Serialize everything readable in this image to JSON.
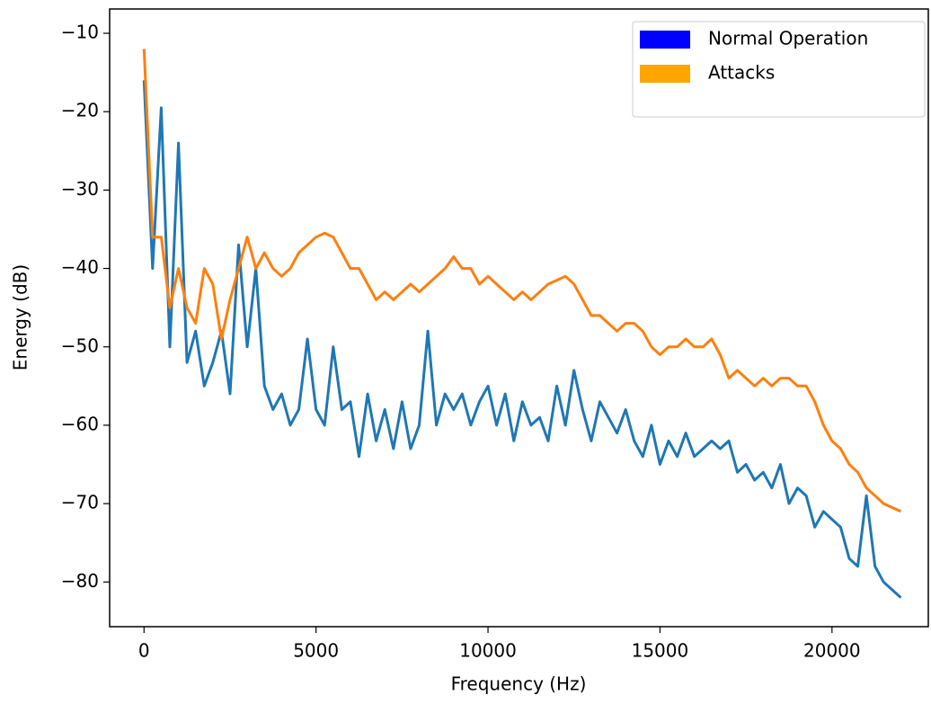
{
  "chart_data": {
    "type": "line",
    "xlabel": "Frequency (Hz)",
    "ylabel": "Energy (dB)",
    "xlim": [
      -1000,
      22800
    ],
    "ylim": [
      -85.7,
      -6.9
    ],
    "xticks": [
      0,
      5000,
      10000,
      15000,
      20000
    ],
    "yticks": [
      {
        "value": -10,
        "label": "−10"
      },
      {
        "value": -20,
        "label": "−20"
      },
      {
        "value": -30,
        "label": "−30"
      },
      {
        "value": -40,
        "label": "−40"
      },
      {
        "value": -50,
        "label": "−50"
      },
      {
        "value": -60,
        "label": "−60"
      },
      {
        "value": -70,
        "label": "−70"
      },
      {
        "value": -80,
        "label": "−80"
      }
    ],
    "legend_position": "upper right",
    "x": [
      0,
      250,
      500,
      750,
      1000,
      1250,
      1500,
      1750,
      2000,
      2250,
      2500,
      2750,
      3000,
      3250,
      3500,
      3750,
      4000,
      4250,
      4500,
      4750,
      5000,
      5250,
      5500,
      5750,
      6000,
      6250,
      6500,
      6750,
      7000,
      7250,
      7500,
      7750,
      8000,
      8250,
      8500,
      8750,
      9000,
      9250,
      9500,
      9750,
      10000,
      10250,
      10500,
      10750,
      11000,
      11250,
      11500,
      11750,
      12000,
      12250,
      12500,
      12750,
      13000,
      13250,
      13500,
      13750,
      14000,
      14250,
      14500,
      14750,
      15000,
      15250,
      15500,
      15750,
      16000,
      16250,
      16500,
      16750,
      17000,
      17250,
      17500,
      17750,
      18000,
      18250,
      18500,
      18750,
      19000,
      19250,
      19500,
      19750,
      20000,
      20250,
      20500,
      20750,
      21000,
      21250,
      21500,
      21750,
      22000
    ],
    "series": [
      {
        "name": "Normal Operation",
        "color": "#1f77b4",
        "legend_color": "#0000ff",
        "values": [
          -16,
          -40,
          -19.5,
          -50,
          -24,
          -52,
          -48,
          -55,
          -52,
          -48,
          -56,
          -37,
          -50,
          -40,
          -55,
          -58,
          -56,
          -60,
          -58,
          -49,
          -58,
          -60,
          -50,
          -58,
          -57,
          -64,
          -56,
          -62,
          -58,
          -63,
          -57,
          -63,
          -60,
          -48,
          -60,
          -56,
          -58,
          -56,
          -60,
          -57,
          -55,
          -60,
          -56,
          -62,
          -57,
          -60,
          -59,
          -62,
          -55,
          -60,
          -53,
          -58,
          -62,
          -57,
          -59,
          -61,
          -58,
          -62,
          -64,
          -60,
          -65,
          -62,
          -64,
          -61,
          -64,
          -63,
          -62,
          -63,
          -62,
          -66,
          -65,
          -67,
          -66,
          -68,
          -65,
          -70,
          -68,
          -69,
          -73,
          -71,
          -72,
          -73,
          -77,
          -78,
          -69,
          -78,
          -80,
          -81,
          -82
        ]
      },
      {
        "name": "Attacks",
        "color": "#ff7f0e",
        "legend_color": "#ffa500",
        "values": [
          -12,
          -36,
          -36,
          -45,
          -40,
          -45,
          -47,
          -40,
          -42,
          -49,
          -44,
          -40,
          -36,
          -40,
          -38,
          -40,
          -41,
          -40,
          -38,
          -37,
          -36,
          -35.5,
          -36,
          -38,
          -40,
          -40,
          -42,
          -44,
          -43,
          -44,
          -43,
          -42,
          -43,
          -42,
          -41,
          -40,
          -38.5,
          -40,
          -40,
          -42,
          -41,
          -42,
          -43,
          -44,
          -43,
          -44,
          -43,
          -42,
          -41.5,
          -41,
          -42,
          -44,
          -46,
          -46,
          -47,
          -48,
          -47,
          -47,
          -48,
          -50,
          -51,
          -50,
          -50,
          -49,
          -50,
          -50,
          -49,
          -51,
          -54,
          -53,
          -54,
          -55,
          -54,
          -55,
          -54,
          -54,
          -55,
          -55,
          -57,
          -60,
          -62,
          -63,
          -65,
          -66,
          -68,
          -69,
          -70,
          -70.5,
          -71
        ]
      }
    ]
  }
}
